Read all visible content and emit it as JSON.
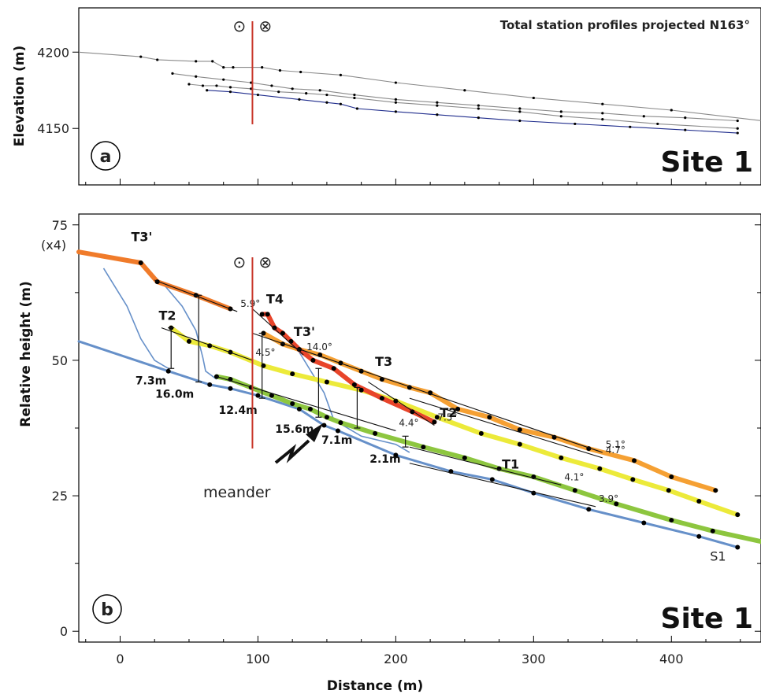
{
  "chart_data": [
    {
      "panel_letter": "a",
      "type": "line",
      "title": "Total station profiles projected N163°",
      "site_label": "Site 1",
      "ylabel": "Elevation (m)",
      "xlim": [
        -30,
        465
      ],
      "ylim": [
        4113,
        4229
      ],
      "y_ticks": [
        4150,
        4200
      ],
      "colors": {
        "profile": "#8a8a8a",
        "lowest_profile": "#1f2c8c",
        "fault": "#c8362a"
      },
      "fault_x": 96,
      "fault_symbols": [
        "⊙",
        "⊗"
      ],
      "series": [
        {
          "role": "profile",
          "points": [
            [
              -30,
              4200
            ],
            [
              15,
              4197
            ],
            [
              27,
              4195
            ],
            [
              55,
              4194
            ],
            [
              67,
              4194
            ],
            [
              75,
              4190
            ],
            [
              82,
              4190
            ],
            [
              103,
              4190
            ],
            [
              116,
              4188
            ],
            [
              131,
              4187
            ],
            [
              160,
              4185
            ],
            [
              200,
              4180
            ],
            [
              250,
              4175
            ],
            [
              300,
              4170
            ],
            [
              350,
              4166
            ],
            [
              400,
              4162
            ],
            [
              466,
              4155
            ]
          ]
        },
        {
          "role": "profile",
          "points": [
            [
              38,
              4186
            ],
            [
              55,
              4184
            ],
            [
              75,
              4182
            ],
            [
              95,
              4180
            ],
            [
              110,
              4178
            ],
            [
              125,
              4176
            ],
            [
              145,
              4175
            ],
            [
              170,
              4172
            ],
            [
              200,
              4169
            ],
            [
              230,
              4167
            ],
            [
              260,
              4165
            ],
            [
              290,
              4163
            ],
            [
              320,
              4161
            ],
            [
              350,
              4160
            ],
            [
              380,
              4158
            ],
            [
              410,
              4157
            ],
            [
              448,
              4155
            ]
          ]
        },
        {
          "role": "profile",
          "points": [
            [
              50,
              4179
            ],
            [
              60,
              4178
            ],
            [
              70,
              4178
            ],
            [
              80,
              4177
            ],
            [
              95,
              4176
            ],
            [
              115,
              4174
            ],
            [
              135,
              4173
            ],
            [
              150,
              4172
            ],
            [
              170,
              4170
            ],
            [
              200,
              4167
            ],
            [
              230,
              4165
            ],
            [
              260,
              4163
            ],
            [
              290,
              4161
            ],
            [
              320,
              4158
            ],
            [
              350,
              4156
            ],
            [
              390,
              4153
            ],
            [
              448,
              4150
            ]
          ]
        },
        {
          "role": "lowest",
          "points": [
            [
              63,
              4175
            ],
            [
              80,
              4174
            ],
            [
              100,
              4172
            ],
            [
              130,
              4169
            ],
            [
              150,
              4167
            ],
            [
              160,
              4166
            ],
            [
              172,
              4163
            ],
            [
              200,
              4161
            ],
            [
              230,
              4159
            ],
            [
              260,
              4157
            ],
            [
              290,
              4155
            ],
            [
              330,
              4153
            ],
            [
              370,
              4151
            ],
            [
              410,
              4149
            ],
            [
              448,
              4147
            ]
          ]
        }
      ]
    },
    {
      "panel_letter": "b",
      "type": "line",
      "site_label": "Site 1",
      "xlabel": "Distance (m)",
      "ylabel": "Relative height (m)",
      "xlim": [
        -30,
        465
      ],
      "ylim": [
        -2,
        77
      ],
      "x_ticks": [
        0,
        100,
        200,
        300,
        400
      ],
      "y_ticks": [
        0,
        25,
        50,
        75
      ],
      "scale_note": "(x4)",
      "meander_label": "meander",
      "colors": {
        "T4": "#e8442a",
        "T3_prime": "#f07b2a",
        "T3": "#f5a033",
        "T2": "#ecea3a",
        "T1": "#8dc63f",
        "S1": "#6690c9",
        "fault": "#c8362a",
        "meander_curve": "#6690c9"
      },
      "fault_x": 96,
      "fault_symbols": [
        "⊙",
        "⊗"
      ],
      "surfaces": [
        {
          "name": "T3'",
          "color": "T3_prime",
          "points": [
            [
              -30,
              70
            ],
            [
              15,
              68
            ],
            [
              27,
              64.5
            ],
            [
              55,
              62
            ],
            [
              80,
              59.5
            ]
          ]
        },
        {
          "name": "T4",
          "color": "T4",
          "points": [
            [
              103,
              58.5
            ],
            [
              107,
              58.5
            ],
            [
              112,
              56
            ],
            [
              118,
              55
            ],
            [
              124,
              53.5
            ],
            [
              130,
              52
            ],
            [
              140,
              50
            ],
            [
              155,
              48.5
            ],
            [
              170,
              45.5
            ],
            [
              190,
              43
            ],
            [
              212,
              40.5
            ],
            [
              228,
              38.6
            ]
          ]
        },
        {
          "name": "T3",
          "color": "T3",
          "points": [
            [
              104,
              55
            ],
            [
              118,
              53
            ],
            [
              130,
              52
            ],
            [
              145,
              51
            ],
            [
              160,
              49.5
            ],
            [
              175,
              48
            ],
            [
              190,
              46.5
            ],
            [
              210,
              45
            ],
            [
              225,
              44
            ],
            [
              245,
              41
            ],
            [
              268,
              39.5
            ],
            [
              290,
              37.2
            ],
            [
              315,
              35.8
            ],
            [
              340,
              33.7
            ],
            [
              373,
              31.5
            ],
            [
              400,
              28.5
            ],
            [
              432,
              26
            ]
          ]
        },
        {
          "name": "T2",
          "color": "T2",
          "points": [
            [
              37,
              56
            ],
            [
              50,
              53.5
            ],
            [
              65,
              52.7
            ],
            [
              80,
              51.5
            ],
            [
              104,
              49
            ],
            [
              125,
              47.5
            ],
            [
              150,
              46
            ],
            [
              175,
              44.5
            ],
            [
              200,
              42.5
            ],
            [
              230,
              39.5
            ],
            [
              262,
              36.5
            ],
            [
              290,
              34.5
            ],
            [
              320,
              32
            ],
            [
              348,
              30
            ],
            [
              372,
              28
            ],
            [
              398,
              26
            ],
            [
              420,
              24
            ],
            [
              448,
              21.5
            ]
          ]
        },
        {
          "name": "T1",
          "color": "T1",
          "points": [
            [
              70,
              47
            ],
            [
              80,
              46.5
            ],
            [
              95,
              45
            ],
            [
              110,
              43.5
            ],
            [
              125,
              42
            ],
            [
              138,
              41
            ],
            [
              150,
              39.5
            ],
            [
              160,
              38.5
            ],
            [
              185,
              36.5
            ],
            [
              220,
              34
            ],
            [
              250,
              32
            ],
            [
              275,
              30
            ],
            [
              300,
              28.5
            ],
            [
              330,
              26
            ],
            [
              360,
              23.5
            ],
            [
              400,
              20.5
            ],
            [
              430,
              18.5
            ],
            [
              466,
              16.5
            ]
          ]
        },
        {
          "name": "S1",
          "color": "S1",
          "points": [
            [
              -30,
              53.5
            ],
            [
              35,
              48
            ],
            [
              65,
              45.5
            ],
            [
              80,
              44.8
            ],
            [
              100,
              43.5
            ],
            [
              130,
              41
            ],
            [
              148,
              38
            ],
            [
              158,
              37
            ],
            [
              200,
              32.5
            ],
            [
              240,
              29.5
            ],
            [
              270,
              28
            ],
            [
              300,
              25.5
            ],
            [
              340,
              22.5
            ],
            [
              380,
              20
            ],
            [
              420,
              17.5
            ],
            [
              448,
              15.5
            ]
          ]
        }
      ],
      "meander_curves": [
        [
          [
            -12,
            67
          ],
          [
            5,
            60
          ],
          [
            15,
            54
          ],
          [
            25,
            50
          ],
          [
            35,
            48.5
          ]
        ],
        [
          [
            30,
            64.5
          ],
          [
            45,
            60
          ],
          [
            55,
            55.5
          ],
          [
            60,
            50.5
          ],
          [
            62,
            48
          ],
          [
            70,
            46.5
          ]
        ],
        [
          [
            130,
            51.5
          ],
          [
            148,
            44
          ],
          [
            155,
            39
          ],
          [
            175,
            36
          ],
          [
            200,
            34.5
          ],
          [
            210,
            33
          ]
        ]
      ],
      "fit_lines": [
        {
          "label": "5.9°",
          "from": [
            25,
            64.8
          ],
          "to": [
            85,
            59
          ]
        },
        {
          "label": "14.0°",
          "from": [
            96,
            59.5
          ],
          "to": [
            133,
            51
          ]
        },
        {
          "label": "4.5°",
          "from": [
            30,
            56
          ],
          "to": [
            96,
            50
          ]
        },
        {
          "label": "7.5°",
          "from": [
            180,
            46
          ],
          "to": [
            228,
            38
          ]
        },
        {
          "label": "5.1°",
          "from": [
            96,
            55
          ],
          "to": [
            350,
            33
          ]
        },
        {
          "label": "4.4°",
          "from": [
            70,
            47
          ],
          "to": [
            200,
            37
          ]
        },
        {
          "label": "4.7°",
          "from": [
            210,
            43
          ],
          "to": [
            350,
            32
          ]
        },
        {
          "label": "4.1°",
          "from": [
            210,
            34
          ],
          "to": [
            320,
            27
          ]
        },
        {
          "label": "3.9°",
          "from": [
            210,
            31
          ],
          "to": [
            345,
            23
          ]
        }
      ],
      "offsets": [
        {
          "label": "7.3m",
          "x": 37,
          "from": 48.5,
          "to": 56
        },
        {
          "label": "16.0m",
          "x": 57,
          "from": 46,
          "to": 62
        },
        {
          "label": "15.6m",
          "x": 144,
          "from": 39.5,
          "to": 48.5
        },
        {
          "label": "12.4m",
          "x": 103,
          "from": 43,
          "to": 55
        },
        {
          "label": "7.1m",
          "x": 172,
          "from": 37.5,
          "to": 45
        },
        {
          "label": "2.1m",
          "x": 207,
          "from": 34,
          "to": 36
        }
      ],
      "terrace_labels": [
        {
          "text": "T3'",
          "x": 8,
          "y": 72
        },
        {
          "text": "T2",
          "x": 28,
          "y": 57.5
        },
        {
          "text": "T4",
          "x": 106,
          "y": 60.5
        },
        {
          "text": "T3'",
          "x": 126,
          "y": 54.5
        },
        {
          "text": "T3",
          "x": 185,
          "y": 49
        },
        {
          "text": "T2",
          "x": 232,
          "y": 39.5
        },
        {
          "text": "T1",
          "x": 277,
          "y": 30
        },
        {
          "text": "S1",
          "x": 428,
          "y": 13
        }
      ]
    }
  ]
}
